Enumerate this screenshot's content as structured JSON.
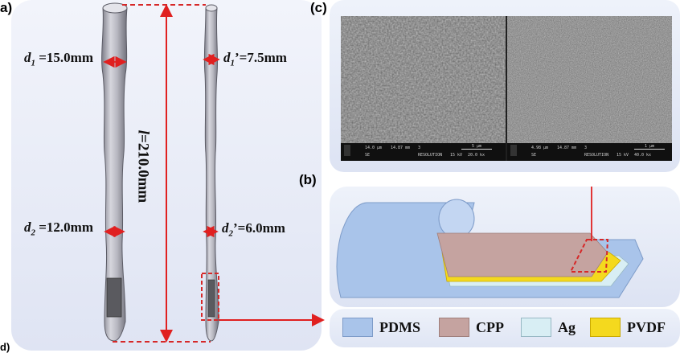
{
  "panels": {
    "a_label": "a)",
    "b_label": "(b)",
    "c_label": "(c)",
    "bottom_partial_label": "d)"
  },
  "measurements": {
    "d1": {
      "sym": "d",
      "sub": "1",
      "value": " =15.0mm"
    },
    "d1p": {
      "sym": "d",
      "sub": "1",
      "value": "’=7.5mm"
    },
    "d2": {
      "sym": "d",
      "sub": "2",
      "value": " =12.0mm"
    },
    "d2p": {
      "sym": "d",
      "sub": "2",
      "value": "’=6.0mm"
    },
    "length": {
      "sym": "l",
      "value": "=210.0mm"
    }
  },
  "sem": {
    "left_scale": "5 μm",
    "right_scale": "1 μm",
    "left_meta": [
      "14.0 μm",
      "14.87 mm",
      "3",
      "SE",
      "RESOLUTION",
      "15 kV",
      "20.0 kx"
    ],
    "right_meta": [
      "4.98 μm",
      "14.87 mm",
      "3",
      "SE",
      "RESOLUTION",
      "15 kV",
      "40.0 kx"
    ]
  },
  "legend": [
    {
      "label": "PDMS",
      "color": "#a9c4ea"
    },
    {
      "label": "CPP",
      "color": "#c5a3a0"
    },
    {
      "label": "Ag",
      "color": "#d8eef4"
    },
    {
      "label": "PVDF",
      "color": "#f4d91e"
    }
  ],
  "colors": {
    "arrow": "#e02020",
    "dashed": "#d62828",
    "pdms": "#a9c4ea",
    "cpp": "#c5a3a0",
    "ag": "#d8eef4",
    "pvdf": "#f4d91e",
    "rod": "#a9a9b4"
  }
}
